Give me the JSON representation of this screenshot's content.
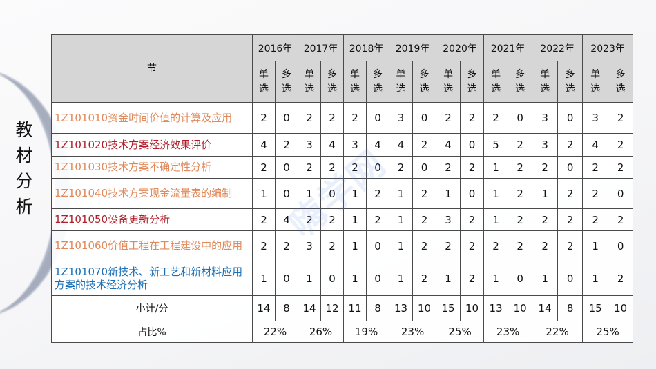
{
  "side_title": [
    "教",
    "材",
    "分",
    "析"
  ],
  "watermark": "嗨学网",
  "colors": {
    "orange": "#e0895a",
    "red": "#b01e2a",
    "blue": "#1b6fb5",
    "header_bg": "#d6d6d6"
  },
  "table": {
    "section_header": "节",
    "years": [
      "2016年",
      "2017年",
      "2018年",
      "2019年",
      "2020年",
      "2021年",
      "2022年",
      "2023年"
    ],
    "sub_headers": {
      "single": "单\n选",
      "multi": "多\n选"
    },
    "rows": [
      {
        "title": "1Z101010资金时间价值的计算及应用",
        "color": "orange",
        "values": [
          2,
          0,
          2,
          2,
          2,
          0,
          3,
          0,
          2,
          2,
          2,
          0,
          3,
          0,
          3,
          2
        ]
      },
      {
        "title": "1Z101020技术方案经济效果评价",
        "color": "red",
        "values": [
          4,
          2,
          3,
          4,
          3,
          4,
          4,
          2,
          4,
          0,
          5,
          2,
          3,
          2,
          4,
          2
        ]
      },
      {
        "title": "1Z101030技术方案不确定性分析",
        "color": "orange",
        "values": [
          2,
          0,
          2,
          2,
          2,
          0,
          2,
          0,
          2,
          2,
          1,
          2,
          2,
          0,
          2,
          2
        ]
      },
      {
        "title": "1Z101040技术方案现金流量表的编制",
        "color": "orange",
        "values": [
          1,
          0,
          1,
          0,
          1,
          2,
          1,
          2,
          1,
          0,
          1,
          2,
          1,
          2,
          2,
          0
        ]
      },
      {
        "title": "1Z101050设备更新分析",
        "color": "red",
        "values": [
          2,
          4,
          2,
          2,
          1,
          2,
          1,
          2,
          3,
          2,
          1,
          2,
          2,
          2,
          2,
          2
        ]
      },
      {
        "title": "1Z101060价值工程在工程建设中的应用",
        "color": "orange",
        "values": [
          2,
          2,
          3,
          2,
          1,
          0,
          1,
          2,
          2,
          2,
          2,
          2,
          2,
          2,
          1,
          0
        ]
      },
      {
        "title": "1Z101070新技术、新工艺和新材料应用方案的技术经济分析",
        "color": "blue",
        "values": [
          1,
          0,
          1,
          0,
          1,
          0,
          1,
          2,
          1,
          2,
          1,
          0,
          1,
          0,
          1,
          2
        ]
      }
    ],
    "subtotal": {
      "label": "小计/分",
      "values": [
        14,
        8,
        14,
        12,
        11,
        8,
        13,
        10,
        15,
        10,
        13,
        10,
        14,
        8,
        15,
        10
      ]
    },
    "percent": {
      "label": "占比%",
      "values": [
        "22%",
        "26%",
        "19%",
        "23%",
        "25%",
        "23%",
        "22%",
        "25%"
      ]
    }
  }
}
